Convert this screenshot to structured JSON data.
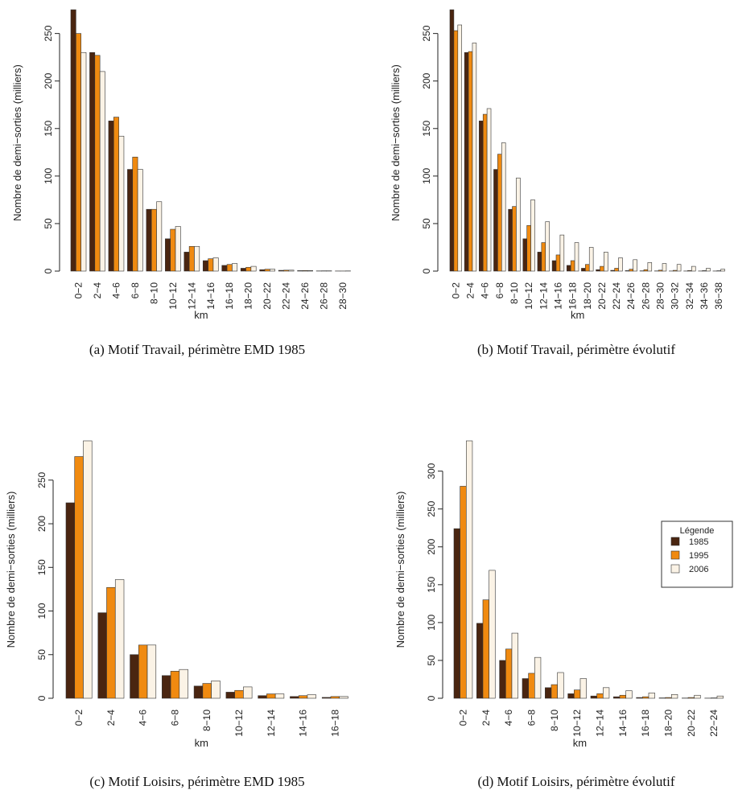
{
  "colors": {
    "1985": "#4a2510",
    "1995": "#f08a10",
    "2006": "#fbf3e6"
  },
  "legend": {
    "title": "Légende",
    "items": [
      "1985",
      "1995",
      "2006"
    ]
  },
  "chart_data": [
    {
      "type": "bar",
      "caption": "(a) Motif Travail, périmètre EMD 1985",
      "ylabel": "Nombre de demi−sorties (milliers)",
      "xlabel": "km",
      "ylim": [
        0,
        270
      ],
      "yticks": [
        0,
        50,
        100,
        150,
        200,
        250
      ],
      "categories": [
        "0−2",
        "2−4",
        "4−6",
        "6−8",
        "8−10",
        "10−12",
        "12−14",
        "14−16",
        "16−18",
        "18−20",
        "20−22",
        "22−24",
        "24−26",
        "26−28",
        "28−30"
      ],
      "series": [
        {
          "name": "1985",
          "values": [
            275,
            230,
            158,
            107,
            65,
            34,
            20,
            11,
            6,
            3,
            1.5,
            0.8,
            0.5,
            0.2,
            0.1
          ]
        },
        {
          "name": "1995",
          "values": [
            250,
            227,
            162,
            120,
            65,
            44,
            26,
            13,
            7,
            4,
            2,
            1,
            0.6,
            0.3,
            0.1
          ]
        },
        {
          "name": "2006",
          "values": [
            230,
            210,
            142,
            107,
            73,
            47,
            26,
            14,
            8,
            5,
            2,
            1,
            0.6,
            0.3,
            0.2
          ]
        }
      ]
    },
    {
      "type": "bar",
      "caption": "(b) Motif Travail, périmètre évolutif",
      "ylabel": "Nombre de demi−sorties (milliers)",
      "xlabel": "km",
      "ylim": [
        0,
        270
      ],
      "yticks": [
        0,
        50,
        100,
        150,
        200,
        250
      ],
      "categories": [
        "0−2",
        "2−4",
        "4−6",
        "6−8",
        "8−10",
        "10−12",
        "12−14",
        "14−16",
        "16−18",
        "18−20",
        "20−22",
        "22−24",
        "24−26",
        "26−28",
        "28−30",
        "30−32",
        "32−34",
        "34−36",
        "36−38"
      ],
      "series": [
        {
          "name": "1985",
          "values": [
            275,
            230,
            158,
            107,
            65,
            34,
            20,
            11,
            6,
            3,
            1.5,
            0.8,
            0.5,
            0.3,
            0.2,
            0.1,
            0.1,
            0.1,
            0.1
          ]
        },
        {
          "name": "1995",
          "values": [
            253,
            231,
            165,
            123,
            68,
            48,
            30,
            17,
            11,
            7,
            5,
            3,
            2,
            1.5,
            1,
            0.8,
            0.6,
            0.5,
            0.4
          ]
        },
        {
          "name": "2006",
          "values": [
            259,
            240,
            171,
            135,
            98,
            75,
            52,
            38,
            30,
            25,
            20,
            14,
            12,
            9,
            8,
            7,
            5,
            3,
            2
          ]
        }
      ]
    },
    {
      "type": "bar",
      "caption": "(c) Motif Loisirs, périmètre EMD 1985",
      "ylabel": "Nombre de demi−sorties (milliers)",
      "xlabel": "km",
      "ylim": [
        0,
        295
      ],
      "yticks": [
        0,
        50,
        100,
        150,
        200,
        250
      ],
      "categories": [
        "0−2",
        "2−4",
        "4−6",
        "6−8",
        "8−10",
        "10−12",
        "12−14",
        "14−16",
        "16−18"
      ],
      "series": [
        {
          "name": "1985",
          "values": [
            224,
            98,
            50,
            26,
            14,
            7,
            3,
            2,
            1
          ]
        },
        {
          "name": "1995",
          "values": [
            277,
            127,
            61,
            31,
            17,
            9,
            5,
            3,
            2
          ]
        },
        {
          "name": "2006",
          "values": [
            295,
            136,
            61,
            33,
            20,
            13,
            5,
            4,
            2
          ]
        }
      ]
    },
    {
      "type": "bar",
      "caption": "(d) Motif Loisirs, périmètre évolutif",
      "ylabel": "Nombre de demi−sorties (milliers)",
      "xlabel": "km",
      "ylim": [
        0,
        340
      ],
      "yticks": [
        0,
        50,
        100,
        150,
        200,
        250,
        300
      ],
      "categories": [
        "0−2",
        "2−4",
        "4−6",
        "6−8",
        "8−10",
        "10−12",
        "12−14",
        "14−16",
        "16−18",
        "18−20",
        "20−22",
        "22−24"
      ],
      "series": [
        {
          "name": "1985",
          "values": [
            224,
            99,
            50,
            26,
            14,
            6,
            3,
            2,
            1,
            0.5,
            0.3,
            0.2
          ]
        },
        {
          "name": "1995",
          "values": [
            280,
            130,
            65,
            33,
            18,
            11,
            6,
            4,
            2,
            1,
            1,
            0.5
          ]
        },
        {
          "name": "2006",
          "values": [
            340,
            169,
            86,
            54,
            34,
            26,
            14,
            10,
            7,
            5,
            4,
            3
          ]
        }
      ]
    }
  ]
}
